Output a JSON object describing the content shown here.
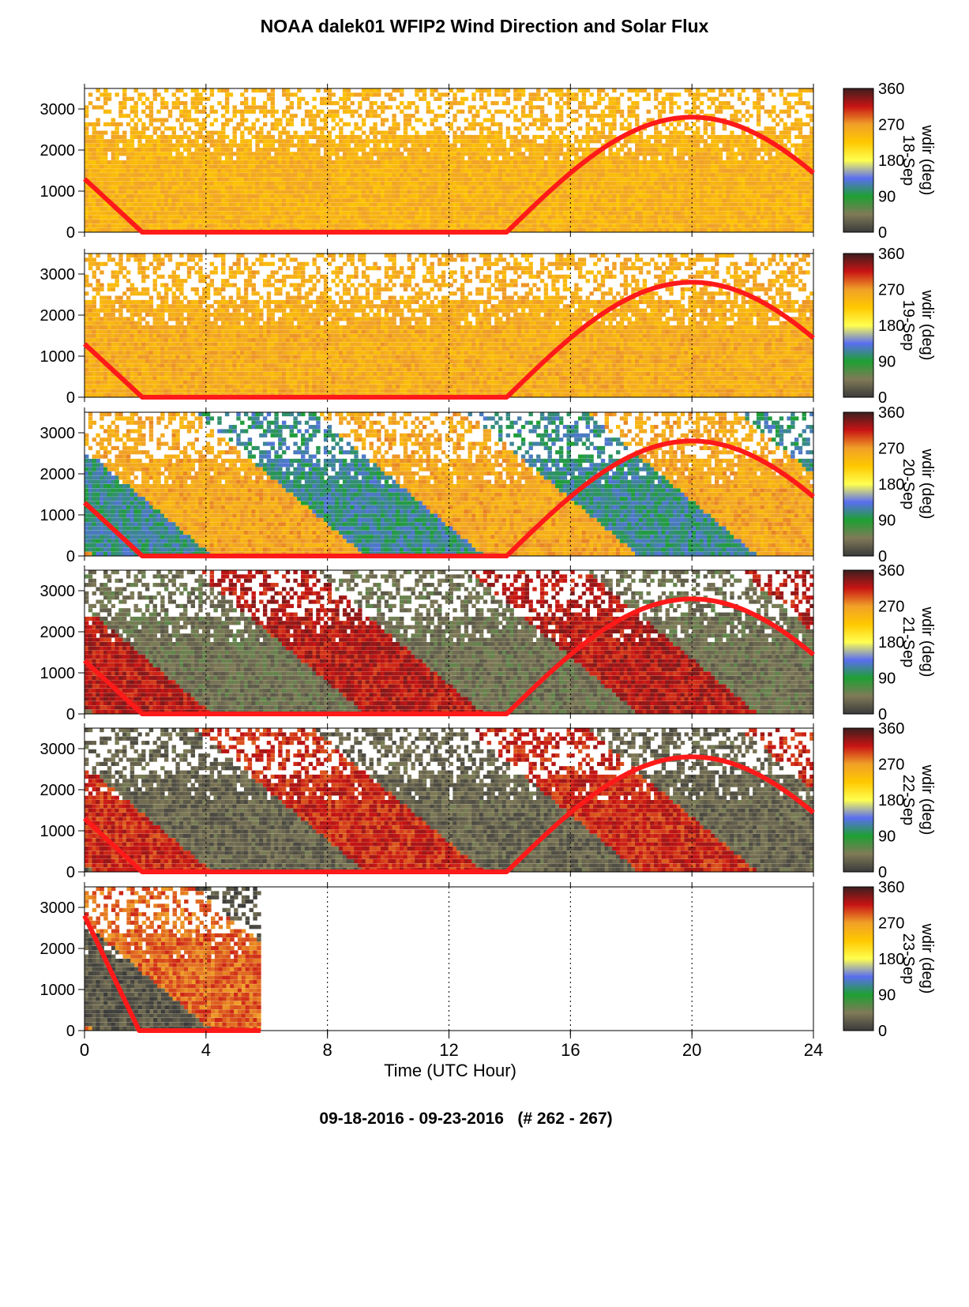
{
  "title": "NOAA dalek01 WFIP2 Wind Direction and Solar Flux",
  "subtitle": "09-18-2016 - 09-23-2016   (# 262 - 267)",
  "colors": {
    "solar_flux_line": "#ff1a1a",
    "colormap": [
      "#3a3a3a",
      "#807a58",
      "#1ea032",
      "#5a6ef0",
      "#ffff50",
      "#ffc800",
      "#f0a028",
      "#c81414",
      "#3c1e1e"
    ]
  },
  "chart_data": {
    "type": "heatmap",
    "xlabel": "Time (UTC Hour)",
    "xlim": [
      0,
      24
    ],
    "x_ticks": [
      "0",
      "4",
      "8",
      "12",
      "16",
      "20",
      "24"
    ],
    "ylim": [
      0,
      3500
    ],
    "y_ticks": [
      "0",
      "1000",
      "2000",
      "3000"
    ],
    "grid": "dotted vertical lines at x = 4, 8, 12, 16, 20",
    "colorbar": {
      "label": "wdir (deg)",
      "range": [
        0,
        360
      ],
      "ticks": [
        "0",
        "90",
        "180",
        "270",
        "360"
      ]
    },
    "panels": [
      {
        "date": "18-Sep",
        "data_extent_hours": [
          0,
          24
        ],
        "dominant_wdir_deg": 250,
        "description_values": {
          "wdir_low_range": [
            230,
            280
          ]
        },
        "solar_flux": {
          "x": [
            0,
            1.9,
            13.9,
            20,
            24
          ],
          "y": [
            1300,
            0,
            0,
            2800,
            1500
          ]
        }
      },
      {
        "date": "19-Sep",
        "data_extent_hours": [
          0,
          24
        ],
        "dominant_wdir_deg": 255,
        "solar_flux": {
          "x": [
            0,
            1.9,
            13.9,
            20,
            24
          ],
          "y": [
            1300,
            0,
            0,
            2800,
            1500
          ]
        }
      },
      {
        "date": "20-Sep",
        "data_extent_hours": [
          0,
          24
        ],
        "dominant_wdir_deg": 260,
        "secondary_wdir_deg": 110,
        "solar_flux": {
          "x": [
            0,
            1.9,
            13.9,
            20,
            24
          ],
          "y": [
            1300,
            0,
            0,
            2800,
            1500
          ]
        }
      },
      {
        "date": "21-Sep",
        "data_extent_hours": [
          0,
          24
        ],
        "dominant_wdir_deg": 40,
        "secondary_wdir_deg": 320,
        "solar_flux": {
          "x": [
            0,
            1.9,
            13.9,
            20,
            24
          ],
          "y": [
            1300,
            0,
            0,
            2800,
            1500
          ]
        }
      },
      {
        "date": "22-Sep",
        "data_extent_hours": [
          0,
          24
        ],
        "dominant_wdir_deg": 30,
        "secondary_wdir_deg": 310,
        "solar_flux": {
          "x": [
            0,
            1.9,
            13.9,
            20,
            24
          ],
          "y": [
            1300,
            0,
            0,
            2800,
            1500
          ]
        }
      },
      {
        "date": "23-Sep",
        "data_extent_hours": [
          0,
          5.8
        ],
        "dominant_wdir_deg": 290,
        "secondary_wdir_deg": 20,
        "solar_flux": {
          "x": [
            0,
            1.8,
            5.8
          ],
          "y": [
            2800,
            0,
            0
          ]
        }
      }
    ]
  }
}
